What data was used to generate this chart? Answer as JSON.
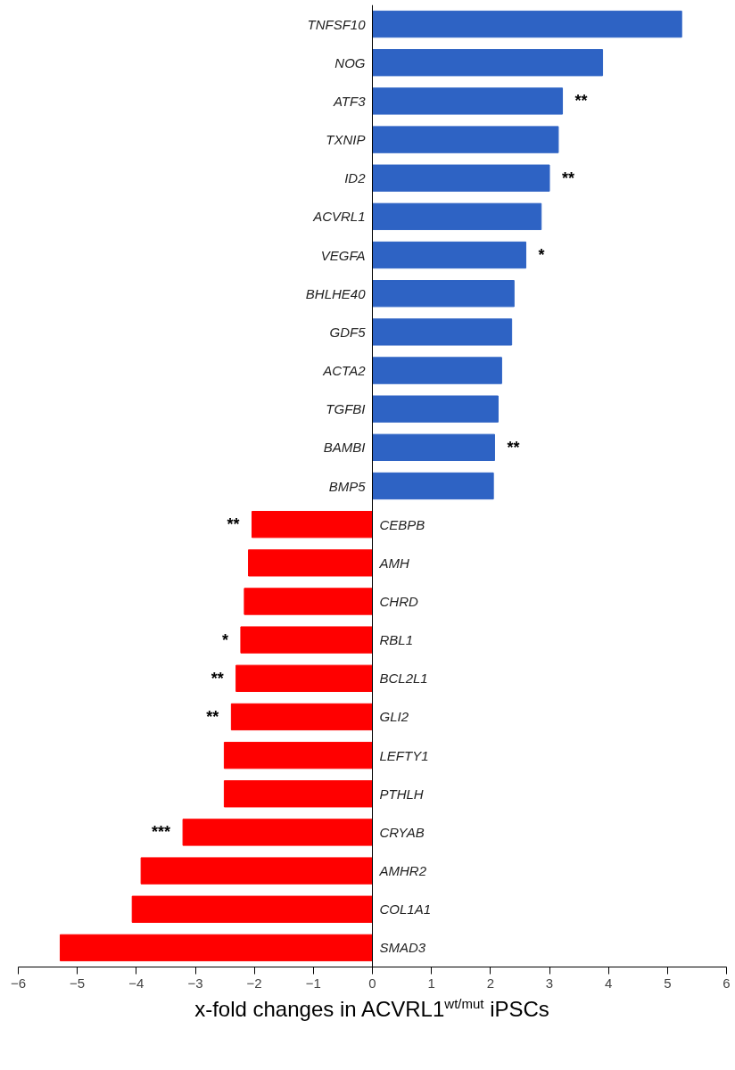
{
  "chart_data": {
    "type": "bar",
    "orientation": "horizontal",
    "categories": [
      "TNFSF10",
      "NOG",
      "ATF3",
      "TXNIP",
      "ID2",
      "ACVRL1",
      "VEGFA",
      "BHLHE40",
      "GDF5",
      "ACTA2",
      "TGFBI",
      "BAMBI",
      "BMP5",
      "CEBPB",
      "AMH",
      "CHRD",
      "RBL1",
      "BCL2L1",
      "GLI2",
      "LEFTY1",
      "PTHLH",
      "CRYAB",
      "AMHR2",
      "COL1A1",
      "SMAD3"
    ],
    "values": [
      5.24,
      3.9,
      3.22,
      3.15,
      3.0,
      2.86,
      2.6,
      2.4,
      2.36,
      2.19,
      2.13,
      2.07,
      2.05,
      -2.04,
      -2.1,
      -2.17,
      -2.23,
      -2.31,
      -2.39,
      -2.51,
      -2.51,
      -3.21,
      -3.92,
      -4.07,
      -5.29
    ],
    "colors": [
      "#2e63c4",
      "#2e63c4",
      "#2e63c4",
      "#2e63c4",
      "#2e63c4",
      "#2e63c4",
      "#2e63c4",
      "#2e63c4",
      "#2e63c4",
      "#2e63c4",
      "#2e63c4",
      "#2e63c4",
      "#2e63c4",
      "#ff0000",
      "#ff0000",
      "#ff0000",
      "#ff0000",
      "#ff0000",
      "#ff0000",
      "#ff0000",
      "#ff0000",
      "#ff0000",
      "#ff0000",
      "#ff0000",
      "#ff0000"
    ],
    "xlim": [
      -6,
      6
    ],
    "xticks": [
      -6,
      -5,
      -4,
      -3,
      -2,
      -1,
      0,
      1,
      2,
      3,
      4,
      5,
      6
    ],
    "xlabel": "x-fold changes in ACVRL1$^{wt/mut}$ iPSCs",
    "annotations": [
      {
        "text": "**",
        "x": 3.22,
        "y": "ATF3"
      },
      {
        "text": "**",
        "x": 3.0,
        "y": "ID2"
      },
      {
        "text": "*",
        "x": 2.6,
        "y": "VEGFA"
      },
      {
        "text": "**",
        "x": 2.07,
        "y": "BAMBI"
      },
      {
        "text": "**",
        "x": -2.04,
        "y": "CEBPB"
      },
      {
        "text": "*",
        "x": -2.23,
        "y": "RBL1"
      },
      {
        "text": "**",
        "x": -2.31,
        "y": "BCL2L1"
      },
      {
        "text": "**",
        "x": -2.39,
        "y": "GLI2"
      },
      {
        "text": "***",
        "x": -3.21,
        "y": "CRYAB"
      }
    ],
    "grid": false
  }
}
